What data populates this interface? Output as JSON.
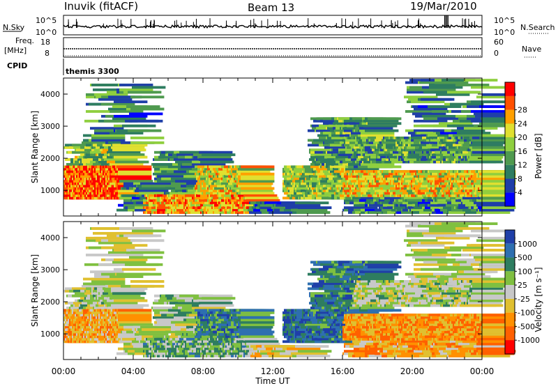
{
  "header": {
    "station": "Inuvik (fitACF)",
    "beam": "Beam 13",
    "date": "19/Mar/2010"
  },
  "top_panels": {
    "nsky_label": "N.Sky",
    "nsearch_label": "N.Search",
    "nsky_ticks": [
      "10^5",
      "10^0"
    ],
    "nsearch_ticks": [
      "10^5",
      "10^0"
    ],
    "freq_label": "Freq.",
    "freq_unit": "[MHz]",
    "freq_ticks": [
      "18",
      "8"
    ],
    "nave_label": "Nave",
    "nave_ticks": [
      "60",
      "0"
    ],
    "cpid_label": "CPID",
    "cpid_value": "themis 3300"
  },
  "colors": {
    "power_scale": [
      "#0000ff",
      "#1f3fa8",
      "#2e7d60",
      "#4f9a4f",
      "#8fcf3f",
      "#e0e030",
      "#ffa000",
      "#ff5000",
      "#ff0000"
    ],
    "velocity_scale": [
      "#1f3fa8",
      "#2e6fb0",
      "#2e7d60",
      "#7fc040",
      "#c8c8c8",
      "#e0c030",
      "#ff9000",
      "#ff6000",
      "#ff0000"
    ]
  },
  "chart_data": [
    {
      "type": "heatmap",
      "name": "Power",
      "xlabel": "",
      "ylabel": "Slant Range [km]",
      "x_ticks": [
        "00:00",
        "04:00",
        "08:00",
        "12:00",
        "16:00",
        "20:00",
        "00:00"
      ],
      "y_ticks": [
        "1000",
        "2000",
        "3000",
        "4000"
      ],
      "ylim": [
        200,
        4500
      ],
      "colorbar_label": "Power [dB]",
      "colorbar_ticks": [
        "4",
        "8",
        "12",
        "16",
        "20",
        "24",
        "28"
      ]
    },
    {
      "type": "heatmap",
      "name": "Velocity",
      "xlabel": "Time UT",
      "ylabel": "Slant Range [km]",
      "x_ticks": [
        "00:00",
        "04:00",
        "08:00",
        "12:00",
        "16:00",
        "20:00",
        "00:00"
      ],
      "y_ticks": [
        "1000",
        "2000",
        "3000",
        "4000"
      ],
      "ylim": [
        200,
        4500
      ],
      "colorbar_label": "Velocity [m s⁻¹]",
      "colorbar_ticks": [
        "1000",
        "500",
        "100",
        "25",
        "-25",
        "-100",
        "-500",
        "-1000"
      ]
    }
  ]
}
